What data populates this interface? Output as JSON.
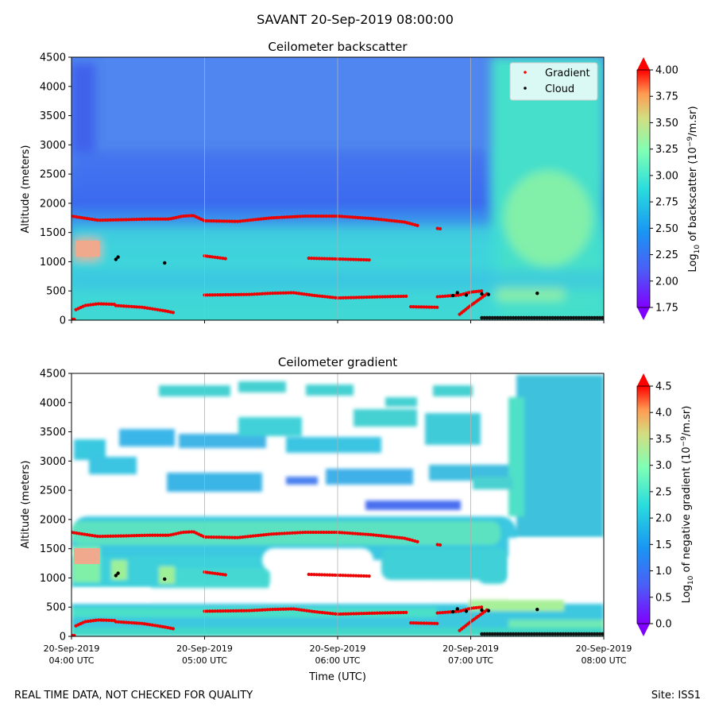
{
  "figure": {
    "suptitle": "SAVANT 20-Sep-2019 08:00:00",
    "footer_left": "REAL TIME DATA, NOT CHECKED FOR QUALITY",
    "footer_right": "Site: ISS1"
  },
  "chart_data": [
    {
      "type": "heatmap",
      "title": "Ceilometer backscatter",
      "ylabel": "Altitude (meters)",
      "xlabel": "",
      "colorbar_label_main": "Log",
      "colorbar_label_sub": "10",
      "colorbar_label_tail": " of backscatter (10",
      "colorbar_label_sup": "−9",
      "colorbar_label_end": "/m.sr)",
      "colormap": "rainbow",
      "ylim": [
        0,
        4500
      ],
      "yticks": [
        0,
        500,
        1000,
        1500,
        2000,
        2500,
        3000,
        3500,
        4000,
        4500
      ],
      "xlim": [
        "04:00",
        "08:00"
      ],
      "xticks": [
        "04:00",
        "05:00",
        "06:00",
        "07:00",
        "08:00"
      ],
      "clim": [
        1.75,
        4.0
      ],
      "cbar_ticks": [
        1.75,
        2.0,
        2.25,
        2.5,
        2.75,
        3.0,
        3.25,
        3.5,
        3.75,
        4.0
      ],
      "cbar_tick_labels": [
        "1.75",
        "2.00",
        "2.25",
        "2.50",
        "2.75",
        "3.00",
        "3.25",
        "3.50",
        "3.75",
        "4.00"
      ],
      "grid": "x only",
      "legend": {
        "placement": "top-right",
        "entries": [
          {
            "name": "Gradient",
            "color": "#ff0000"
          },
          {
            "name": "Cloud",
            "color": "#000000"
          }
        ]
      }
    },
    {
      "type": "heatmap",
      "title": "Ceilometer gradient",
      "ylabel": "Altitude (meters)",
      "xlabel": "Time (UTC)",
      "colorbar_label_main": "Log",
      "colorbar_label_sub": "10",
      "colorbar_label_tail": " of negative gradient (10",
      "colorbar_label_sup": "−9",
      "colorbar_label_end": "/m.sr)",
      "colormap": "rainbow",
      "ylim": [
        0,
        4500
      ],
      "yticks": [
        0,
        500,
        1000,
        1500,
        2000,
        2500,
        3000,
        3500,
        4000,
        4500
      ],
      "xlim": [
        "04:00",
        "08:00"
      ],
      "xticks": [
        "04:00",
        "05:00",
        "06:00",
        "07:00",
        "08:00"
      ],
      "xtick_labels_top": [
        "20-Sep-2019",
        "20-Sep-2019",
        "20-Sep-2019",
        "20-Sep-2019",
        "20-Sep-2019"
      ],
      "xtick_labels_bottom": [
        "04:00 UTC",
        "05:00 UTC",
        "06:00 UTC",
        "07:00 UTC",
        "08:00 UTC"
      ],
      "clim": [
        0.0,
        4.5
      ],
      "cbar_ticks": [
        0.0,
        0.5,
        1.0,
        1.5,
        2.0,
        2.5,
        3.0,
        3.5,
        4.0,
        4.5
      ],
      "cbar_tick_labels": [
        "0.0",
        "0.5",
        "1.0",
        "1.5",
        "2.0",
        "2.5",
        "3.0",
        "3.5",
        "4.0",
        "4.5"
      ],
      "grid": "x only"
    }
  ],
  "gradient_series": [
    {
      "segments": [
        {
          "t": [
            "04:00",
            "04:12",
            "04:25",
            "04:35",
            "04:44",
            "04:50",
            "04:55",
            "05:00",
            "05:15",
            "05:30",
            "05:45",
            "06:00",
            "06:15",
            "06:30",
            "06:36"
          ],
          "alt": [
            1780,
            1710,
            1720,
            1730,
            1730,
            1780,
            1790,
            1700,
            1690,
            1750,
            1780,
            1780,
            1740,
            1680,
            1620
          ]
        },
        {
          "t": [
            "06:45",
            "06:47"
          ],
          "alt": [
            1570,
            1560
          ]
        }
      ]
    },
    {
      "segments": [
        {
          "t": [
            "05:00",
            "05:10"
          ],
          "alt": [
            1100,
            1050
          ]
        },
        {
          "t": [
            "05:47",
            "06:15"
          ],
          "alt": [
            1060,
            1030
          ]
        },
        {
          "t": [
            "05:00",
            "05:20",
            "05:30",
            "05:40",
            "05:50",
            "06:00",
            "06:10",
            "06:20",
            "06:32"
          ],
          "alt": [
            430,
            440,
            460,
            470,
            420,
            380,
            390,
            400,
            410
          ]
        },
        {
          "t": [
            "04:02",
            "04:06",
            "04:12",
            "04:20"
          ],
          "alt": [
            180,
            250,
            280,
            270
          ]
        },
        {
          "t": [
            "04:20",
            "04:32",
            "04:42",
            "04:46"
          ],
          "alt": [
            250,
            220,
            160,
            130
          ]
        },
        {
          "t": [
            "06:33",
            "06:45"
          ],
          "alt": [
            230,
            220
          ]
        },
        {
          "t": [
            "06:45",
            "06:55",
            "07:00",
            "07:05"
          ],
          "alt": [
            400,
            430,
            480,
            500
          ]
        },
        {
          "t": [
            "06:55",
            "07:00",
            "07:08"
          ],
          "alt": [
            100,
            250,
            470
          ]
        },
        {
          "t": [
            "04:00",
            "04:02"
          ],
          "alt": [
            20,
            10
          ]
        }
      ]
    }
  ],
  "cloud_points": {
    "t": [
      "04:20",
      "04:21",
      "04:42",
      "06:52",
      "06:54",
      "06:58",
      "07:05",
      "07:08",
      "07:30"
    ],
    "alt": [
      1040,
      1080,
      980,
      420,
      470,
      430,
      450,
      440,
      460
    ],
    "surface_band": {
      "t_start": "07:05",
      "t_end": "08:00",
      "alt": 40
    }
  }
}
